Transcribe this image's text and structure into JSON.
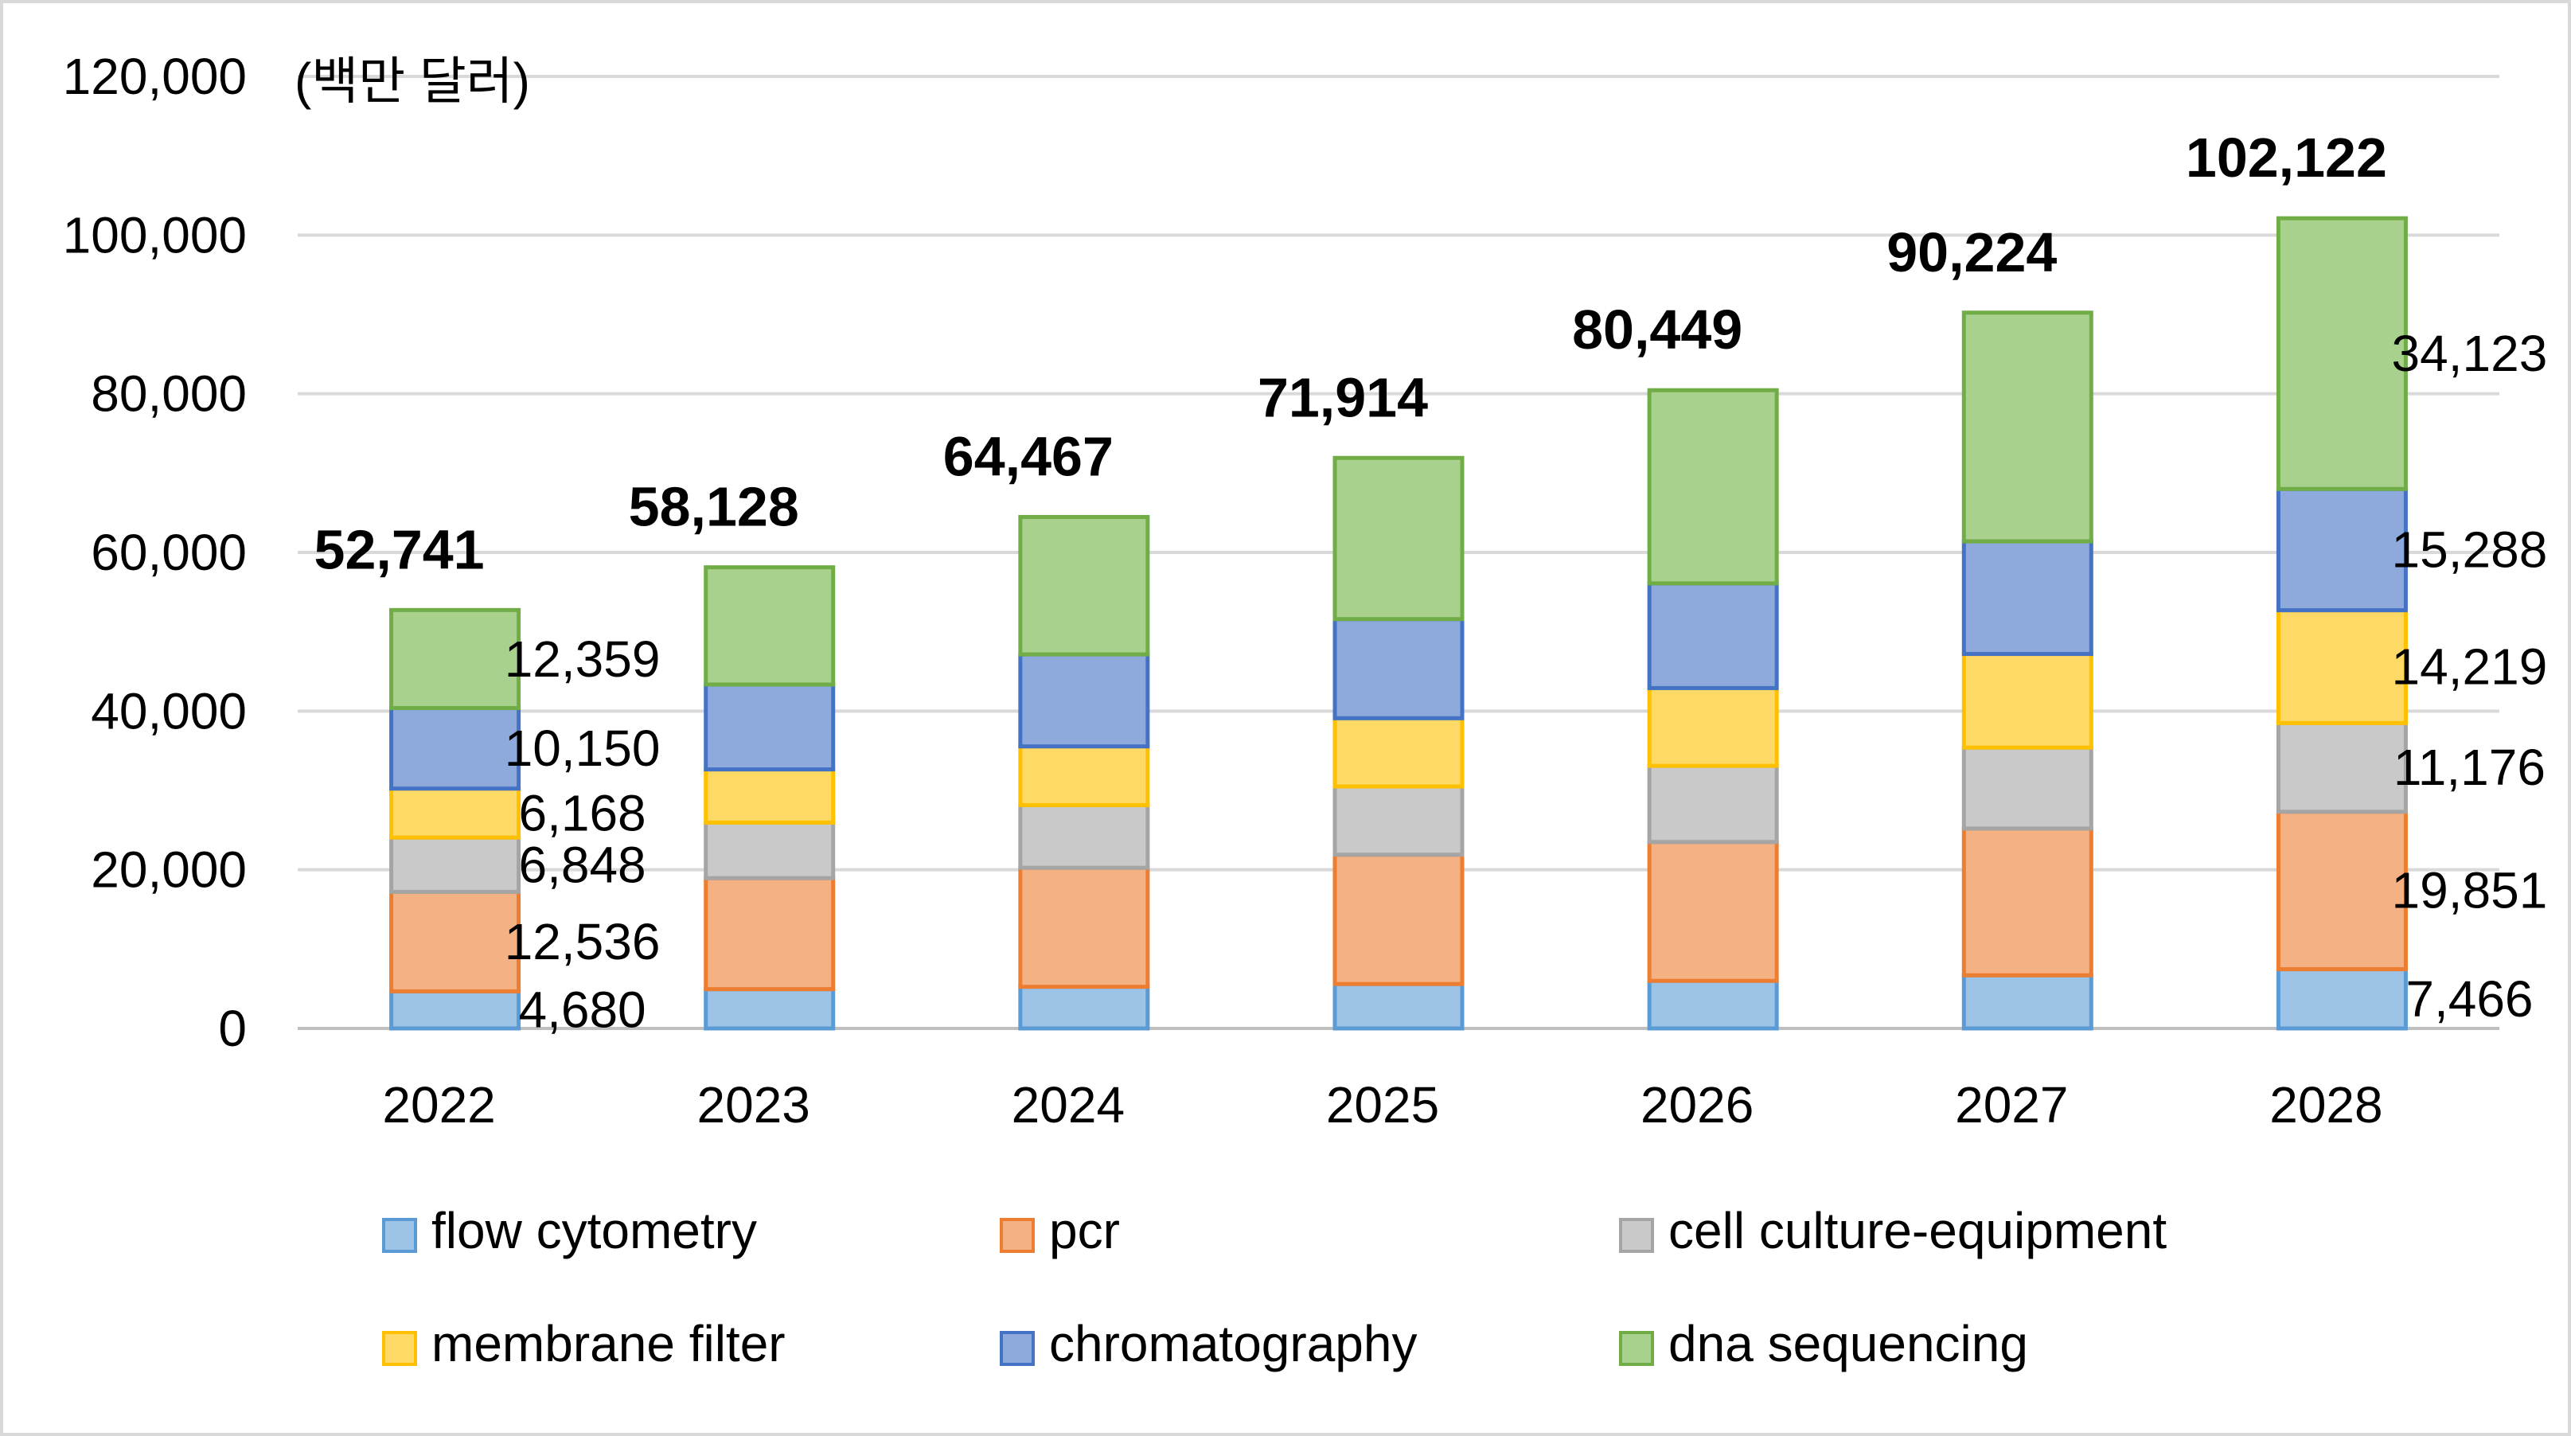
{
  "chart_data": {
    "type": "bar",
    "stacked": true,
    "title": "",
    "unit_label": "(백만 달러)",
    "xlabel": "",
    "ylabel": "",
    "ylim": [
      0,
      120000
    ],
    "yticks": [
      0,
      20000,
      40000,
      60000,
      80000,
      100000,
      120000
    ],
    "ytick_labels": [
      "0",
      "20,000",
      "40,000",
      "60,000",
      "80,000",
      "100,000",
      "120,000"
    ],
    "grid": true,
    "legend_position": "bottom",
    "categories": [
      "2022",
      "2023",
      "2024",
      "2025",
      "2026",
      "2027",
      "2028"
    ],
    "series": [
      {
        "name": "flow cytometry",
        "color": "#9DC3E6",
        "edge": "#5B9BD5",
        "values": [
          4680,
          4950,
          5250,
          5600,
          6000,
          6700,
          7466
        ],
        "labels": [
          "4,680",
          "",
          "",
          "",
          "",
          "",
          "7,466"
        ]
      },
      {
        "name": "pcr",
        "color": "#F4B183",
        "edge": "#ED7D31",
        "values": [
          12536,
          14000,
          15000,
          16300,
          17500,
          18500,
          19851
        ],
        "labels": [
          "12,536",
          "",
          "",
          "",
          "",
          "",
          "19,851"
        ]
      },
      {
        "name": "cell culture-equipment",
        "color": "#C9C9C9",
        "edge": "#A5A5A5",
        "values": [
          6848,
          7000,
          7900,
          8600,
          9600,
          10200,
          11176
        ],
        "labels": [
          "6,848",
          "",
          "",
          "",
          "",
          "",
          "11,176"
        ]
      },
      {
        "name": "membrane filter",
        "color": "#FFD966",
        "edge": "#FFC000",
        "values": [
          6168,
          6700,
          7400,
          8600,
          9800,
          11800,
          14219
        ],
        "labels": [
          "6,168",
          "",
          "",
          "",
          "",
          "",
          "14,219"
        ]
      },
      {
        "name": "chromatography",
        "color": "#8EA9DB",
        "edge": "#4472C4",
        "values": [
          10150,
          10700,
          11600,
          12500,
          13200,
          14200,
          15288
        ],
        "labels": [
          "10,150",
          "",
          "",
          "",
          "",
          "",
          "15,288"
        ]
      },
      {
        "name": "dna sequencing",
        "color": "#A9D18E",
        "edge": "#70AD47",
        "values": [
          12359,
          14778,
          17317,
          20314,
          24349,
          28824,
          34123
        ],
        "labels": [
          "12,359",
          "",
          "",
          "",
          "",
          "",
          "34,123"
        ]
      }
    ],
    "totals": [
      52741,
      58128,
      64467,
      71914,
      80449,
      90224,
      102122
    ],
    "total_labels": [
      "52,741",
      "58,128",
      "64,467",
      "71,914",
      "80,449",
      "90,224",
      "102,122"
    ]
  }
}
